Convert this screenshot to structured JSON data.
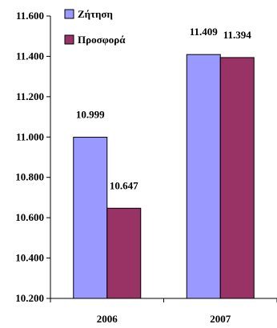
{
  "chart_data": {
    "type": "bar",
    "categories": [
      "2006",
      "2007"
    ],
    "series": [
      {
        "name": "Ζήτηση",
        "values": [
          10999,
          11409
        ],
        "labels": [
          "10.999",
          "11.409"
        ],
        "color": "#9999ff"
      },
      {
        "name": "Προσφορά",
        "values": [
          10647,
          11394
        ],
        "labels": [
          "10.647",
          "11.394"
        ],
        "color": "#993366"
      }
    ],
    "ylim": [
      10200,
      11600
    ],
    "yticks": [
      10200,
      10400,
      10600,
      10800,
      11000,
      11200,
      11400,
      11600
    ],
    "ytick_labels": [
      "10.200",
      "10.400",
      "10.600",
      "10.800",
      "11.000",
      "11.200",
      "11.400",
      "11.600"
    ],
    "legend_position": "top-left",
    "grid": false
  }
}
